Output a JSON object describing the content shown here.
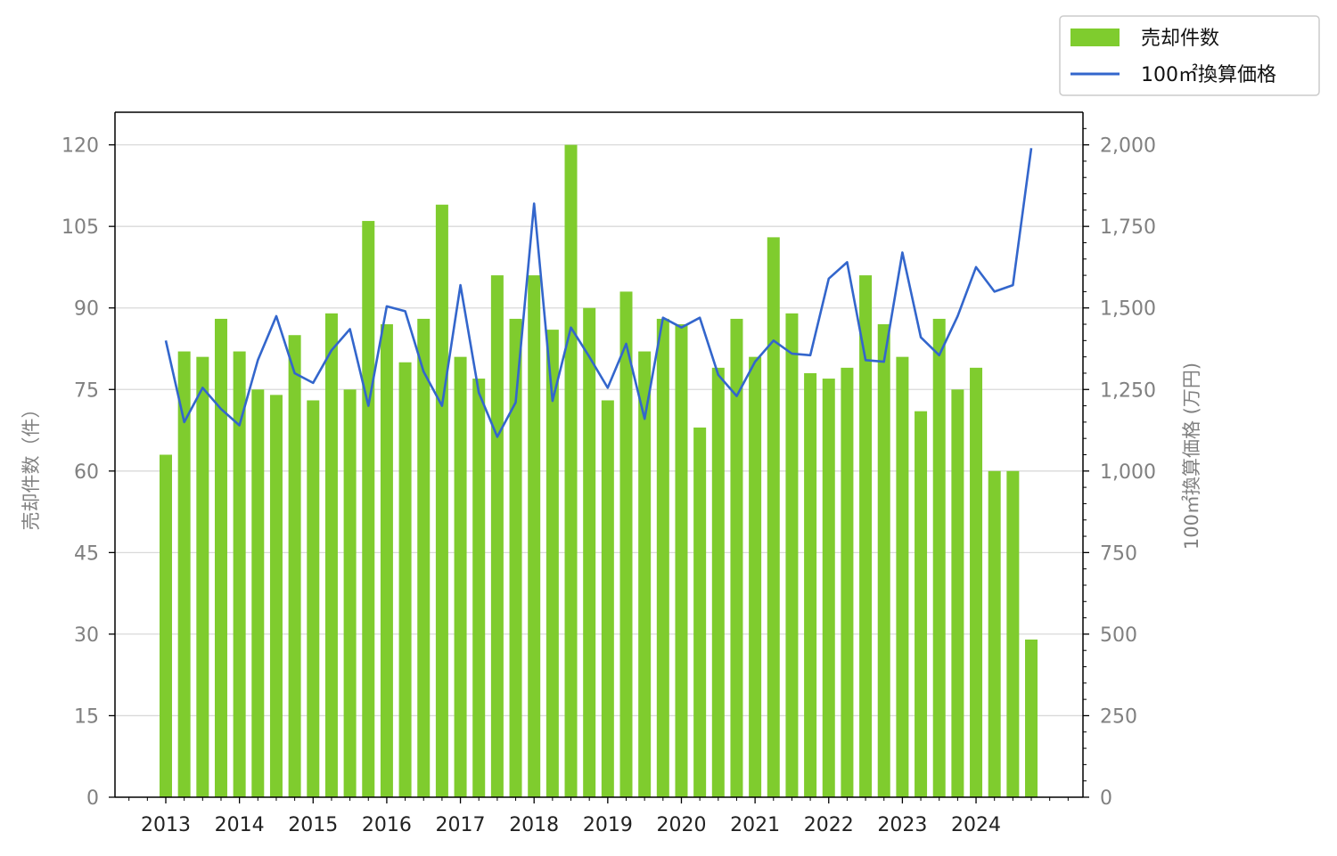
{
  "chart_data": {
    "type": "bar",
    "categories": [
      "2013Q1",
      "2013Q2",
      "2013Q3",
      "2013Q4",
      "2014Q1",
      "2014Q2",
      "2014Q3",
      "2014Q4",
      "2015Q1",
      "2015Q2",
      "2015Q3",
      "2015Q4",
      "2016Q1",
      "2016Q2",
      "2016Q3",
      "2016Q4",
      "2017Q1",
      "2017Q2",
      "2017Q3",
      "2017Q4",
      "2018Q1",
      "2018Q2",
      "2018Q3",
      "2018Q4",
      "2019Q1",
      "2019Q2",
      "2019Q3",
      "2019Q4",
      "2020Q1",
      "2020Q2",
      "2020Q3",
      "2020Q4",
      "2021Q1",
      "2021Q2",
      "2021Q3",
      "2021Q4",
      "2022Q1",
      "2022Q2",
      "2022Q3",
      "2022Q4",
      "2023Q1",
      "2023Q2",
      "2023Q3",
      "2023Q4",
      "2024Q1",
      "2024Q2",
      "2024Q3",
      "2024Q4"
    ],
    "x_tick_labels": [
      "2013",
      "2014",
      "2015",
      "2016",
      "2017",
      "2018",
      "2019",
      "2020",
      "2021",
      "2022",
      "2023",
      "2024"
    ],
    "series": [
      {
        "name": "売却件数",
        "type": "bar",
        "axis": "left",
        "color": "#7fcc2e",
        "values": [
          63,
          82,
          81,
          88,
          82,
          75,
          74,
          85,
          73,
          89,
          75,
          106,
          87,
          80,
          88,
          109,
          81,
          77,
          96,
          88,
          96,
          86,
          120,
          90,
          73,
          93,
          82,
          88,
          87,
          68,
          79,
          88,
          81,
          103,
          89,
          78,
          77,
          79,
          96,
          87,
          81,
          71,
          88,
          75,
          79,
          60,
          60,
          29
        ]
      },
      {
        "name": "100㎡換算価格",
        "type": "line",
        "axis": "right",
        "color": "#3366cc",
        "values": [
          1400,
          1150,
          1255,
          1190,
          1140,
          1340,
          1475,
          1300,
          1270,
          1370,
          1435,
          1200,
          1505,
          1490,
          1305,
          1200,
          1570,
          1240,
          1105,
          1210,
          1820,
          1215,
          1440,
          1350,
          1255,
          1390,
          1160,
          1470,
          1440,
          1470,
          1295,
          1230,
          1335,
          1400,
          1360,
          1355,
          1590,
          1640,
          1340,
          1335,
          1670,
          1410,
          1355,
          1475,
          1625,
          1550,
          1570,
          1990
        ]
      }
    ],
    "ylabel_left": "売却件数（件）",
    "ylabel_right": "100㎡換算価格 (万円)",
    "ylim_left": [
      0,
      126
    ],
    "ylim_right": [
      0,
      2100
    ],
    "yticks_left": [
      "0",
      "15",
      "30",
      "45",
      "60",
      "75",
      "90",
      "105",
      "120"
    ],
    "yticks_right": [
      "0",
      "250",
      "500",
      "750",
      "1,000",
      "1,250",
      "1,500",
      "1,750",
      "2,000"
    ],
    "grid": "horizontal",
    "legend_position": "top-right outside"
  },
  "legend": {
    "items": [
      {
        "label": "売却件数",
        "swatch": "bar",
        "color": "#7fcc2e"
      },
      {
        "label": "100㎡換算価格",
        "swatch": "line",
        "color": "#3366cc"
      }
    ]
  }
}
